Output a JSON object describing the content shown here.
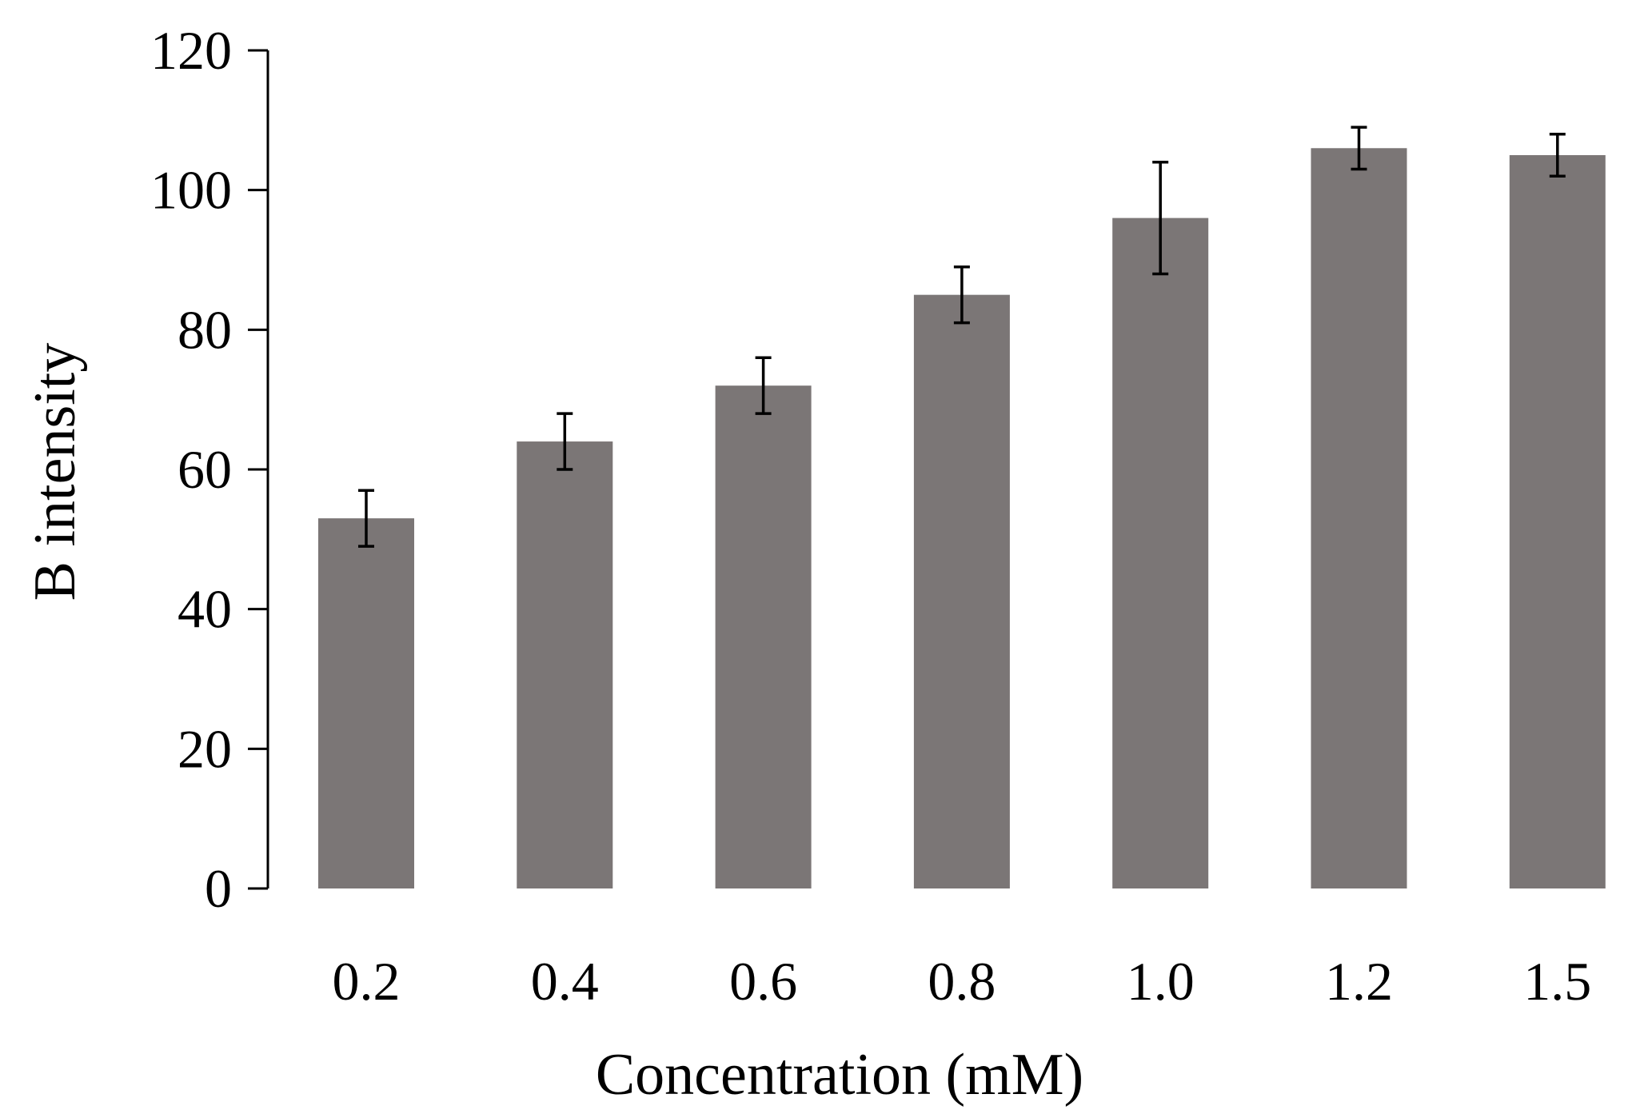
{
  "chart_data": {
    "type": "bar",
    "title": "",
    "xlabel": "Concentration (mM)",
    "ylabel": "B intensity",
    "categories": [
      "0.2",
      "0.4",
      "0.6",
      "0.8",
      "1.0",
      "1.2",
      "1.5"
    ],
    "values": [
      53,
      64,
      72,
      85,
      96,
      106,
      105
    ],
    "errors": [
      4,
      4,
      4,
      4,
      8,
      3,
      3
    ],
    "ylim": [
      0,
      120
    ],
    "yticks": [
      0,
      20,
      40,
      60,
      80,
      100,
      120
    ],
    "ytick_labels": [
      "0",
      "20",
      "40",
      "60",
      "80",
      "100",
      "120"
    ],
    "grid": false,
    "legend": "none",
    "colors": {
      "bar": "#7b7676",
      "axis": "#000000",
      "error_bar": "#000000"
    }
  }
}
